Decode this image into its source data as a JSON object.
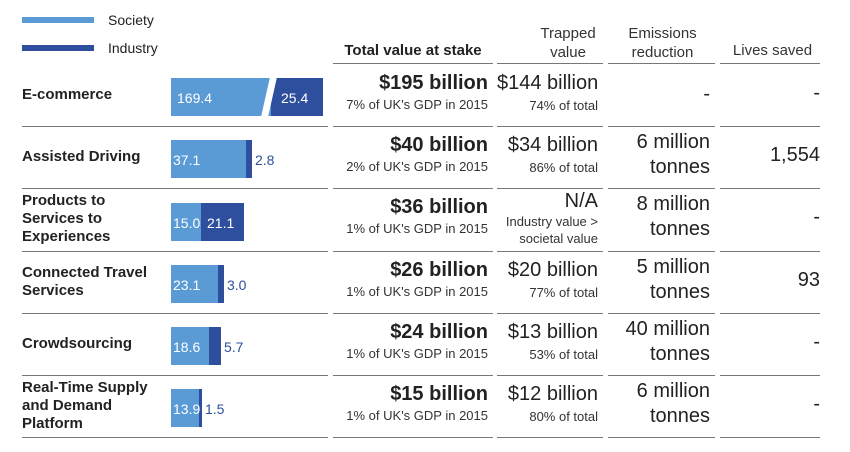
{
  "legend": {
    "society_label": "Society",
    "industry_label": "Industry"
  },
  "colors": {
    "society": "#5b9bd5",
    "industry": "#2e4f9e",
    "bar_text_society": "#ffffff",
    "bar_text_outside": "#2e4f9e"
  },
  "headers": {
    "total": "Total value at stake",
    "trapped": "Trapped value",
    "emissions": "Emissions reduction",
    "lives": "Lives saved"
  },
  "chart_data": {
    "type": "bar",
    "stacked": true,
    "orientation": "horizontal",
    "categories": [
      "E-commerce",
      "Assisted Driving",
      "Products to Services to Experiences",
      "Connected Travel Services",
      "Crowdsourcing",
      "Real-Time Supply and Demand Platform"
    ],
    "series": [
      {
        "name": "Society",
        "values": [
          169.4,
          37.1,
          15.0,
          23.1,
          18.6,
          13.9
        ],
        "labels": [
          "169.4",
          "37.1",
          "15.0",
          "23.1",
          "18.6",
          "13.9"
        ]
      },
      {
        "name": "Industry",
        "values": [
          25.4,
          2.8,
          21.1,
          3.0,
          5.7,
          1.5
        ],
        "labels": [
          "25.4",
          "2.8",
          "21.1",
          "3.0",
          "5.7",
          "1.5"
        ]
      }
    ],
    "axis_break_first_row": true,
    "legend": "top-left"
  },
  "rows": [
    {
      "label_lines": [
        "E-commerce"
      ],
      "total": "$195 billion",
      "gdp": "7% of UK's GDP in 2015",
      "trapped": "$144 billion",
      "trapped_sub": [
        "74% of total"
      ],
      "emissions": [
        "-"
      ],
      "lives": "-"
    },
    {
      "label_lines": [
        "Assisted Driving"
      ],
      "total": "$40 billion",
      "gdp": "2% of UK's GDP in 2015",
      "trapped": "$34 billion",
      "trapped_sub": [
        "86% of total"
      ],
      "emissions": [
        "6 million",
        "tonnes"
      ],
      "lives": "1,554"
    },
    {
      "label_lines": [
        "Products to",
        "Services to",
        "Experiences"
      ],
      "total": "$36 billion",
      "gdp": "1% of UK's GDP in 2015",
      "trapped": "N/A",
      "trapped_sub": [
        "Industry value >",
        "societal value"
      ],
      "emissions": [
        "8 million",
        "tonnes"
      ],
      "lives": "-"
    },
    {
      "label_lines": [
        "Connected Travel",
        "Services"
      ],
      "total": "$26 billion",
      "gdp": "1% of UK's GDP in 2015",
      "trapped": "$20 billion",
      "trapped_sub": [
        "77% of total"
      ],
      "emissions": [
        "5 million",
        "tonnes"
      ],
      "lives": "93"
    },
    {
      "label_lines": [
        "Crowdsourcing"
      ],
      "total": "$24 billion",
      "gdp": "1% of UK's GDP in 2015",
      "trapped": "$13 billion",
      "trapped_sub": [
        "53% of total"
      ],
      "emissions": [
        "40 million",
        "tonnes"
      ],
      "lives": "-"
    },
    {
      "label_lines": [
        "Real-Time Supply",
        "and Demand",
        "Platform"
      ],
      "total": "$15 billion",
      "gdp": "1% of UK's GDP in 2015",
      "trapped": "$12 billion",
      "trapped_sub": [
        "80% of total"
      ],
      "emissions": [
        "6 million",
        "tonnes"
      ],
      "lives": "-"
    }
  ]
}
